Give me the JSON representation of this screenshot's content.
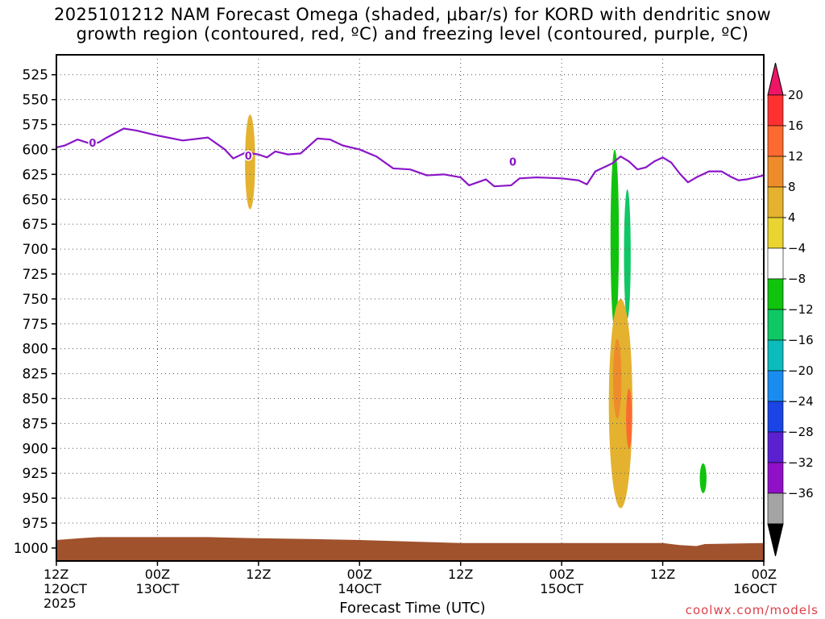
{
  "title_lines": [
    "2025101212 NAM Forecast Omega (shaded, μbar/s) for KORD with dendritic snow",
    "growth region (contoured, red, ºC) and freezing level (contoured, purple, ºC)"
  ],
  "credit": "coolwx.com/models",
  "chart_data": {
    "type": "area",
    "title": "2025101212 NAM Forecast Omega (shaded, μbar/s) for KORD with dendritic snow growth region (contoured, red, ºC) and freezing level (contoured, purple, ºC)",
    "xlabel": "Forecast Time (UTC)",
    "ylabel": "",
    "x_ticks": [
      {
        "h": 0,
        "top": "12Z",
        "bottom": "12OCT",
        "year": "2025"
      },
      {
        "h": 12,
        "top": "00Z",
        "bottom": "13OCT"
      },
      {
        "h": 24,
        "top": "12Z",
        "bottom": ""
      },
      {
        "h": 36,
        "top": "00Z",
        "bottom": "14OCT"
      },
      {
        "h": 48,
        "top": "12Z",
        "bottom": ""
      },
      {
        "h": 60,
        "top": "00Z",
        "bottom": "15OCT"
      },
      {
        "h": 72,
        "top": "12Z",
        "bottom": ""
      },
      {
        "h": 84,
        "top": "00Z",
        "bottom": "16OCT"
      }
    ],
    "x_range_hours": [
      0,
      84
    ],
    "y_ticks": [
      525,
      550,
      575,
      600,
      625,
      650,
      675,
      700,
      725,
      750,
      775,
      800,
      825,
      850,
      875,
      900,
      925,
      950,
      975,
      1000
    ],
    "y_range_mb": [
      505,
      1013
    ],
    "grid": true,
    "colorbar": {
      "labels": [
        "20",
        "16",
        "12",
        "8",
        "4",
        "−4",
        "−8",
        "−12",
        "−16",
        "−20",
        "−24",
        "−28",
        "−32",
        "−36"
      ],
      "colors": [
        "#ee1566",
        "#ff3030",
        "#fd6a30",
        "#ee8c2c",
        "#e4b22e",
        "#ead431",
        "#ffffff",
        "#10c40e",
        "#0fc865",
        "#0cbcbc",
        "#1a8cf0",
        "#1a44e6",
        "#5b20cf",
        "#9010c8",
        "#a4a4a4",
        "#000000"
      ]
    },
    "freezing_level": {
      "contour_label": "0",
      "points": [
        [
          0,
          598
        ],
        [
          1,
          596
        ],
        [
          2.5,
          590
        ],
        [
          4,
          594
        ],
        [
          5,
          593
        ],
        [
          6,
          588
        ],
        [
          8,
          579
        ],
        [
          9.5,
          581
        ],
        [
          12,
          586
        ],
        [
          15,
          591
        ],
        [
          18,
          588
        ],
        [
          20,
          600
        ],
        [
          21,
          609
        ],
        [
          22.5,
          603
        ],
        [
          24,
          605
        ],
        [
          25,
          608
        ],
        [
          26,
          602
        ],
        [
          27.5,
          605
        ],
        [
          29,
          604
        ],
        [
          31,
          589
        ],
        [
          32.5,
          590
        ],
        [
          34,
          596
        ],
        [
          36,
          600
        ],
        [
          38,
          607
        ],
        [
          40,
          619
        ],
        [
          42,
          620
        ],
        [
          44,
          626
        ],
        [
          46,
          625
        ],
        [
          48,
          628
        ],
        [
          49,
          636
        ],
        [
          51,
          630
        ],
        [
          52,
          637
        ],
        [
          54,
          636
        ],
        [
          55,
          629
        ],
        [
          57,
          628
        ],
        [
          60,
          629
        ],
        [
          62,
          631
        ],
        [
          63,
          635
        ],
        [
          64,
          622
        ],
        [
          66,
          614
        ],
        [
          67,
          607
        ],
        [
          68,
          612
        ],
        [
          69,
          620
        ],
        [
          70,
          618
        ],
        [
          71,
          612
        ],
        [
          72,
          608
        ],
        [
          73,
          613
        ],
        [
          74,
          624
        ],
        [
          75,
          633
        ],
        [
          76,
          628
        ],
        [
          77.5,
          622
        ],
        [
          79,
          622
        ],
        [
          80,
          627
        ],
        [
          81,
          631
        ],
        [
          82,
          630
        ],
        [
          84,
          626
        ]
      ]
    },
    "omega_patches": [
      {
        "value": -6,
        "center_h": 24.0,
        "lat_mb": [
          505,
          540
        ],
        "half_width_h": 0.35
      },
      {
        "value": 6,
        "center_h": 23.0,
        "lat_mb": [
          565,
          660
        ],
        "half_width_h": 0.6
      },
      {
        "value": -6,
        "center_h": 65.8,
        "lat_mb": [
          505,
          830
        ],
        "half_width_h": 1.2
      },
      {
        "value": -10,
        "center_h": 66.3,
        "lat_mb": [
          600,
          780
        ],
        "half_width_h": 0.5
      },
      {
        "value": -6,
        "center_h": 67.7,
        "lat_mb": [
          530,
          810
        ],
        "half_width_h": 0.9
      },
      {
        "value": -13,
        "center_h": 67.8,
        "lat_mb": [
          640,
          770
        ],
        "half_width_h": 0.4
      },
      {
        "value": 6,
        "center_h": 67.0,
        "lat_mb": [
          750,
          960
        ],
        "half_width_h": 1.4
      },
      {
        "value": 10,
        "center_h": 66.6,
        "lat_mb": [
          790,
          870
        ],
        "half_width_h": 0.5
      },
      {
        "value": 14,
        "center_h": 68.0,
        "lat_mb": [
          840,
          900
        ],
        "half_width_h": 0.35
      },
      {
        "value": -6,
        "center_h": 76.6,
        "lat_mb": [
          880,
          975
        ],
        "half_width_h": 1.6
      },
      {
        "value": -12,
        "center_h": 76.8,
        "lat_mb": [
          915,
          945
        ],
        "half_width_h": 0.4
      }
    ],
    "terrain_mb": [
      [
        0,
        992
      ],
      [
        3,
        990
      ],
      [
        5,
        989
      ],
      [
        12,
        989
      ],
      [
        18,
        989
      ],
      [
        23,
        990
      ],
      [
        30,
        991
      ],
      [
        36,
        992
      ],
      [
        40,
        993
      ],
      [
        48,
        995
      ],
      [
        60,
        995
      ],
      [
        72,
        995
      ],
      [
        74,
        997
      ],
      [
        76,
        998
      ],
      [
        77,
        996
      ],
      [
        84,
        995
      ]
    ]
  },
  "colors": {
    "freezing_level": "#8a16c8",
    "terrain": "#a0522d",
    "credit": "#e0404a"
  }
}
